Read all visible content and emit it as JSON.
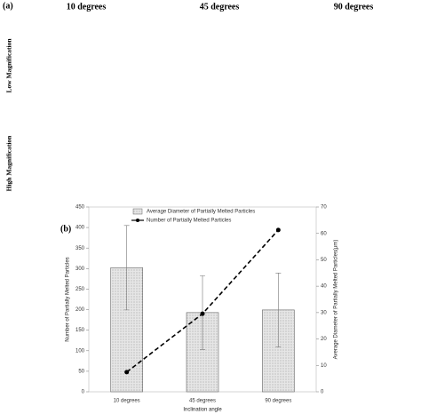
{
  "figure_a": {
    "panel_label": "(a)",
    "columns": [
      "10 degrees",
      "45 degrees",
      "90 degrees"
    ],
    "rows": [
      "Low Magnification",
      "High Magnification"
    ]
  },
  "chart_data": {
    "type": "bar_line",
    "panel_label": "(b)",
    "categories": [
      "10 degrees",
      "45 degrees",
      "90 degrees"
    ],
    "x_label": "Inclination angle",
    "y_label": "Number of Partially Melted Particles",
    "y2_label": "Average Diameter of Partially Melted Particles(μm)",
    "ylim": [
      0,
      450
    ],
    "yticks": [
      0,
      50,
      100,
      150,
      200,
      250,
      300,
      350,
      400,
      450
    ],
    "y2lim": [
      0,
      70
    ],
    "y2ticks": [
      0,
      10,
      20,
      30,
      40,
      50,
      60,
      70
    ],
    "series": [
      {
        "name": "Average Diameter of Partially Melted Particles",
        "type": "bar",
        "axis": "y2",
        "color": "#d0d0d0",
        "values": [
          47,
          30,
          31
        ],
        "errors": [
          16,
          14,
          14
        ]
      },
      {
        "name": "Number of Partially Melted Particles",
        "type": "line",
        "axis": "y",
        "color": "#000000",
        "values": [
          48,
          190,
          394
        ]
      }
    ]
  }
}
